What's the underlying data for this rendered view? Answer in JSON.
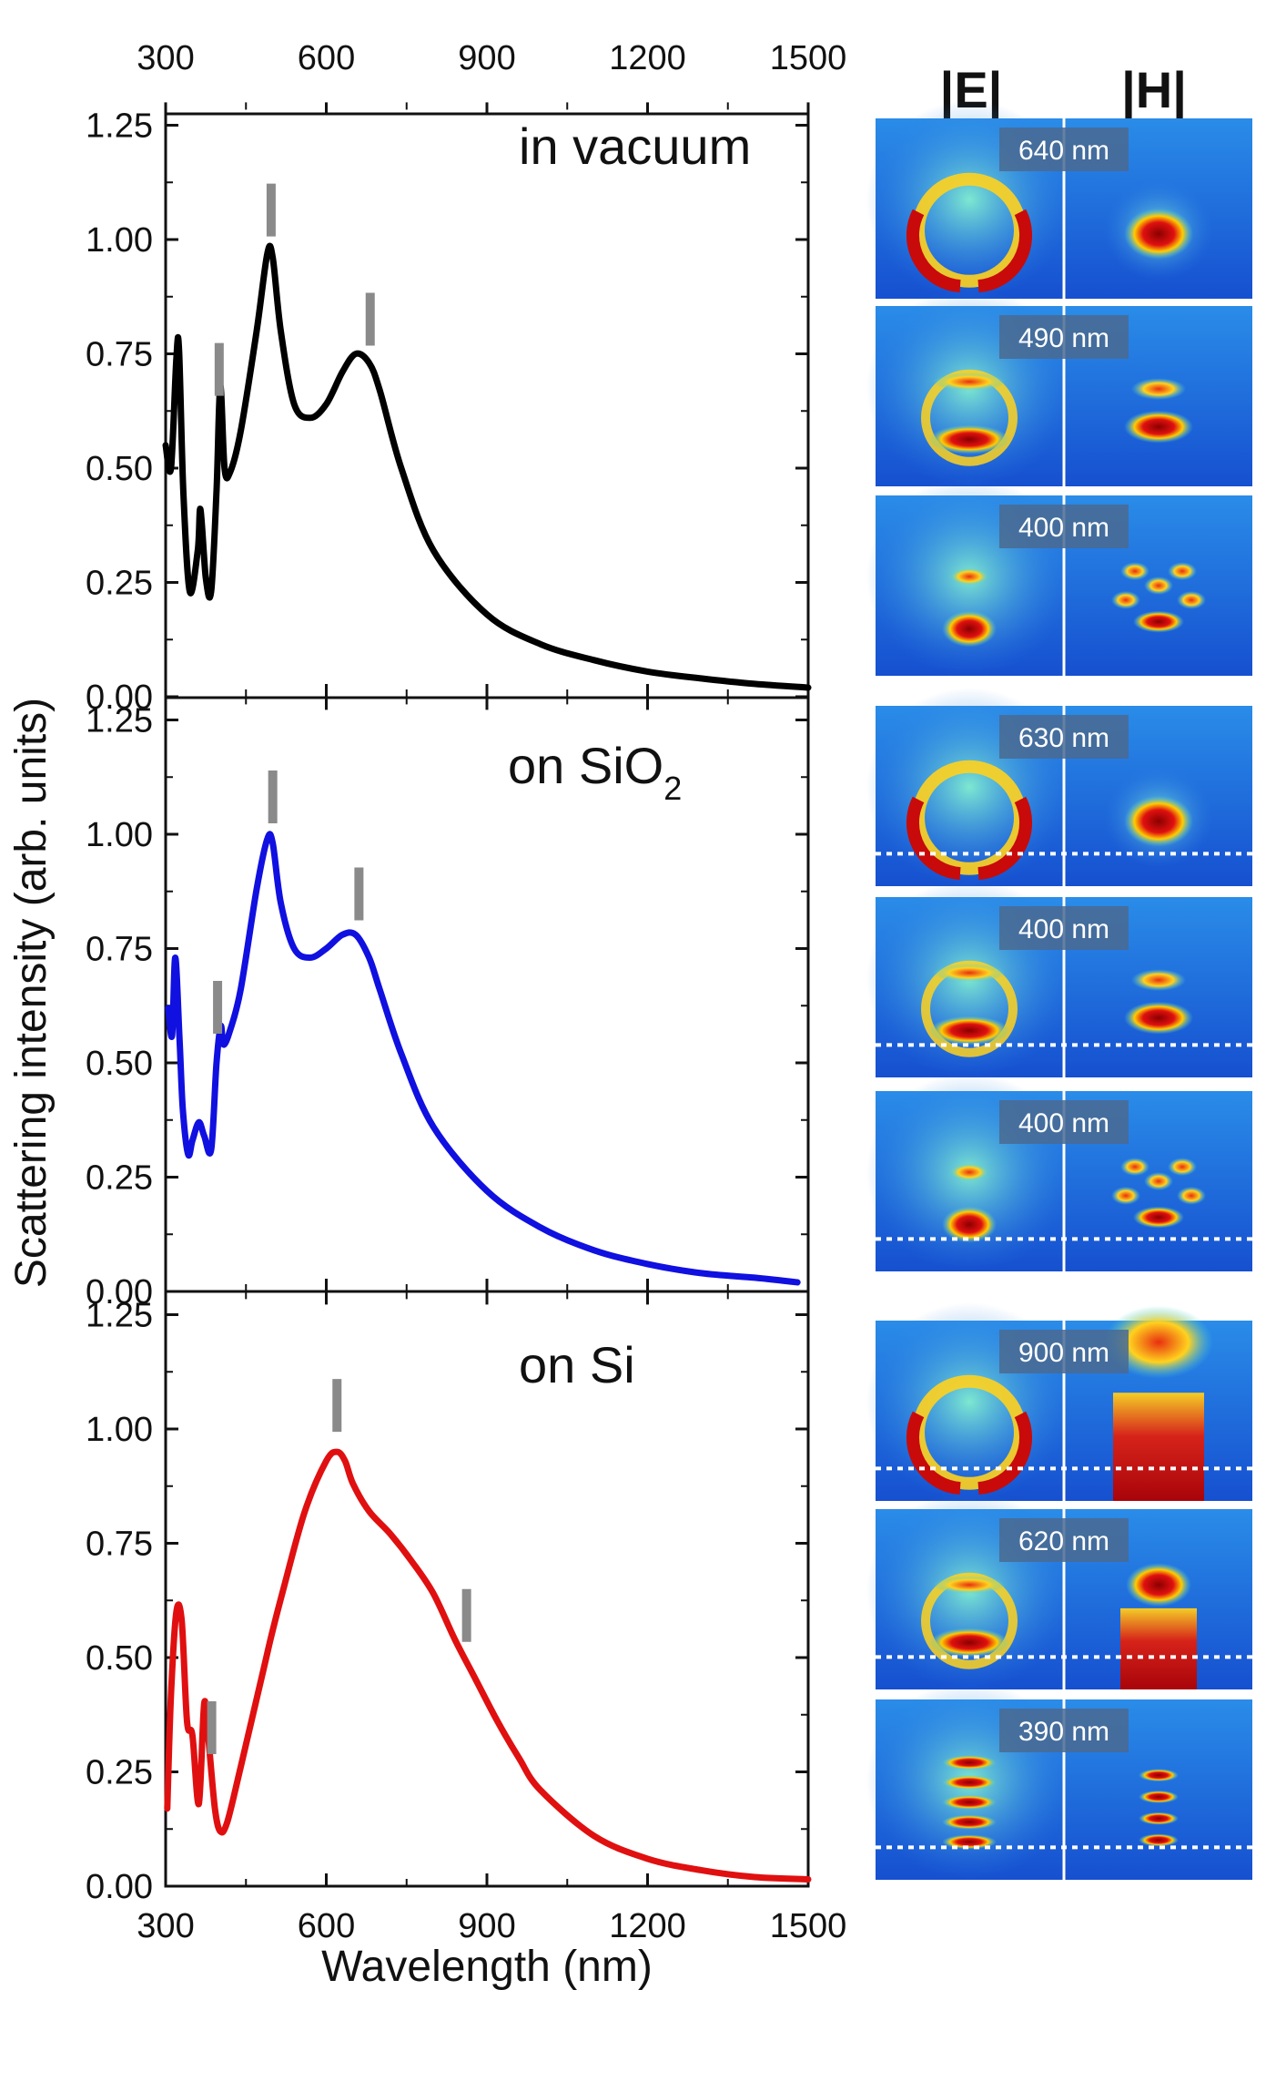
{
  "chart_data": [
    {
      "type": "line",
      "panel": "top",
      "label": "in vacuum",
      "color": "#000000",
      "xlabel": "Wavelength (nm)",
      "ylabel": "Scattering intensity (arb. units)",
      "xlim": [
        300,
        1500
      ],
      "ylim": [
        0,
        1.3
      ],
      "xticks": [
        "300",
        "600",
        "900",
        "1200",
        "1500"
      ],
      "yticks": [
        "0.00",
        "0.25",
        "0.50",
        "0.75",
        "1.00",
        "1.25"
      ],
      "series": [
        {
          "name": "in vacuum",
          "x": [
            300,
            310,
            320,
            325,
            333,
            345,
            360,
            365,
            375,
            385,
            395,
            402,
            410,
            420,
            440,
            470,
            490,
            500,
            515,
            540,
            570,
            600,
            630,
            655,
            680,
            700,
            740,
            800,
            900,
            1000,
            1100,
            1200,
            1300,
            1400,
            1500
          ],
          "y": [
            0.55,
            0.5,
            0.74,
            0.76,
            0.45,
            0.23,
            0.32,
            0.41,
            0.26,
            0.23,
            0.45,
            0.68,
            0.5,
            0.49,
            0.58,
            0.8,
            0.97,
            0.96,
            0.8,
            0.64,
            0.61,
            0.64,
            0.71,
            0.75,
            0.73,
            0.67,
            0.5,
            0.32,
            0.18,
            0.115,
            0.08,
            0.055,
            0.04,
            0.028,
            0.02
          ]
        }
      ],
      "peak_markers": [
        400,
        497,
        682
      ]
    },
    {
      "type": "line",
      "panel": "middle",
      "label_main": "on SiO",
      "label_sub": "2",
      "color": "#1010e0",
      "xlim": [
        300,
        1500
      ],
      "ylim": [
        0,
        1.3
      ],
      "yticks": [
        "0.00",
        "0.25",
        "0.50",
        "0.75",
        "1.00",
        "1.25"
      ],
      "series": [
        {
          "name": "on SiO2",
          "x": [
            305,
            312,
            318,
            326,
            332,
            342,
            350,
            362,
            372,
            385,
            395,
            403,
            408,
            420,
            440,
            470,
            490,
            500,
            515,
            540,
            570,
            600,
            630,
            655,
            680,
            700,
            740,
            800,
            900,
            1000,
            1100,
            1200,
            1300,
            1400,
            1480
          ],
          "y": [
            0.62,
            0.56,
            0.73,
            0.55,
            0.4,
            0.3,
            0.33,
            0.37,
            0.34,
            0.31,
            0.5,
            0.58,
            0.54,
            0.57,
            0.66,
            0.88,
            0.99,
            0.98,
            0.85,
            0.75,
            0.73,
            0.75,
            0.78,
            0.78,
            0.73,
            0.66,
            0.52,
            0.36,
            0.22,
            0.14,
            0.09,
            0.06,
            0.04,
            0.03,
            0.02
          ]
        }
      ],
      "peak_markers": [
        397,
        500,
        661
      ]
    },
    {
      "type": "line",
      "panel": "bottom",
      "label": "on Si",
      "color": "#e01010",
      "xlim": [
        300,
        1500
      ],
      "ylim": [
        0,
        1.3
      ],
      "xticks": [
        "300",
        "600",
        "900",
        "1200",
        "1500"
      ],
      "yticks": [
        "0.00",
        "0.25",
        "0.50",
        "0.75",
        "1.00",
        "1.25"
      ],
      "series": [
        {
          "name": "on Si",
          "x": [
            303,
            310,
            320,
            330,
            340,
            350,
            362,
            372,
            380,
            392,
            402,
            415,
            440,
            480,
            500,
            520,
            560,
            600,
            620,
            635,
            650,
            680,
            720,
            760,
            800,
            840,
            880,
            920,
            960,
            1000,
            1100,
            1200,
            1300,
            1400,
            1500
          ],
          "y": [
            0.17,
            0.42,
            0.6,
            0.58,
            0.36,
            0.33,
            0.18,
            0.4,
            0.32,
            0.17,
            0.12,
            0.14,
            0.26,
            0.46,
            0.56,
            0.65,
            0.82,
            0.93,
            0.95,
            0.93,
            0.88,
            0.82,
            0.77,
            0.71,
            0.64,
            0.54,
            0.45,
            0.36,
            0.28,
            0.21,
            0.11,
            0.06,
            0.035,
            0.02,
            0.015
          ]
        }
      ],
      "peak_markers": [
        386,
        620,
        862
      ]
    }
  ],
  "maps": {
    "headers": {
      "e": "|E|",
      "h": "|H|"
    },
    "rows": [
      {
        "group": "vacuum",
        "wavelength": "640 nm",
        "e_pattern": "ring",
        "h_pattern": "blob",
        "substrate": false
      },
      {
        "group": "vacuum",
        "wavelength": "490 nm",
        "e_pattern": "ring2",
        "h_pattern": "double",
        "substrate": false
      },
      {
        "group": "vacuum",
        "wavelength": "400 nm",
        "e_pattern": "small",
        "h_pattern": "cluster",
        "substrate": false
      },
      {
        "group": "sio2",
        "wavelength": "630 nm",
        "e_pattern": "ring",
        "h_pattern": "blob",
        "substrate": true
      },
      {
        "group": "sio2",
        "wavelength": "400 nm",
        "e_pattern": "ring2",
        "h_pattern": "double",
        "substrate": true
      },
      {
        "group": "sio2",
        "wavelength": "400 nm",
        "e_pattern": "small",
        "h_pattern": "cluster",
        "substrate": true
      },
      {
        "group": "si",
        "wavelength": "900 nm",
        "e_pattern": "ring",
        "h_pattern": "column",
        "substrate": true
      },
      {
        "group": "si",
        "wavelength": "620 nm",
        "e_pattern": "ring2",
        "h_pattern": "column2",
        "substrate": true
      },
      {
        "group": "si",
        "wavelength": "390 nm",
        "e_pattern": "stack",
        "h_pattern": "stack",
        "substrate": true
      }
    ]
  },
  "colors": {
    "field_bg": "#1e6ee0",
    "field_mid": "#3cd2e6",
    "field_hot": "#c80a0a",
    "field_warm": "#ffd21e"
  }
}
